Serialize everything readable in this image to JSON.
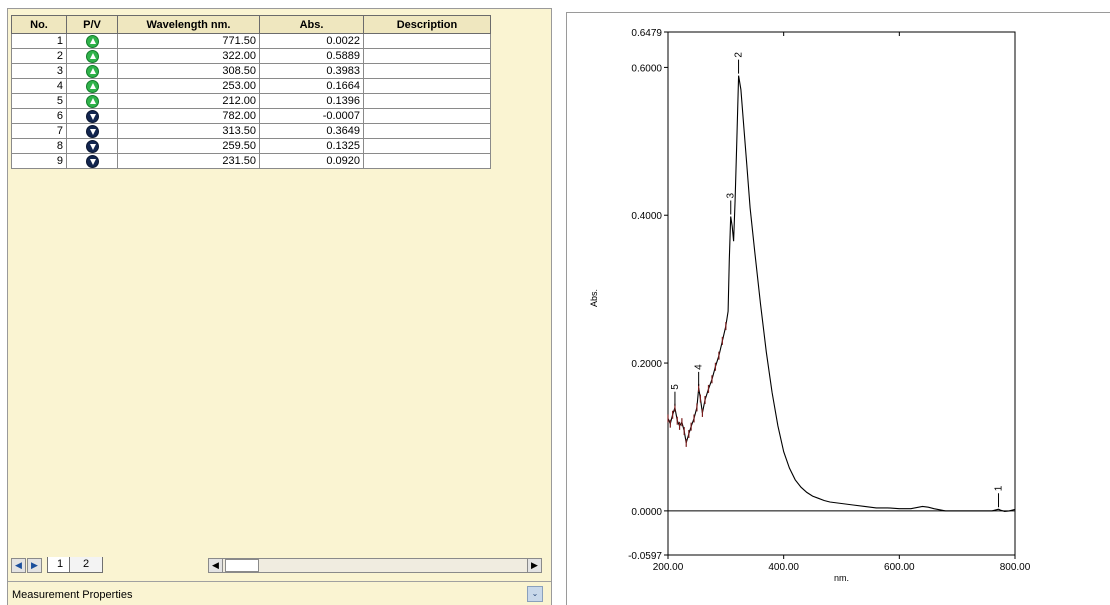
{
  "peak_table": {
    "headers": [
      "No.",
      "P/V",
      "Wavelength nm.",
      "Abs.",
      "Description"
    ],
    "rows": [
      {
        "no": "1",
        "type": "peak",
        "icon": "peak-arrow-up-icon",
        "wavelength": "771.50",
        "abs": "0.0022",
        "description": ""
      },
      {
        "no": "2",
        "type": "peak",
        "icon": "peak-arrow-up-icon",
        "wavelength": "322.00",
        "abs": "0.5889",
        "description": ""
      },
      {
        "no": "3",
        "type": "peak",
        "icon": "peak-arrow-up-icon",
        "wavelength": "308.50",
        "abs": "0.3983",
        "description": ""
      },
      {
        "no": "4",
        "type": "peak",
        "icon": "peak-arrow-up-icon",
        "wavelength": "253.00",
        "abs": "0.1664",
        "description": ""
      },
      {
        "no": "5",
        "type": "peak",
        "icon": "peak-arrow-up-icon",
        "wavelength": "212.00",
        "abs": "0.1396",
        "description": ""
      },
      {
        "no": "6",
        "type": "valley",
        "icon": "valley-arrow-down-icon",
        "wavelength": "782.00",
        "abs": "-0.0007",
        "description": ""
      },
      {
        "no": "7",
        "type": "valley",
        "icon": "valley-arrow-down-icon",
        "wavelength": "313.50",
        "abs": "0.3649",
        "description": ""
      },
      {
        "no": "8",
        "type": "valley",
        "icon": "valley-arrow-down-icon",
        "wavelength": "259.50",
        "abs": "0.1325",
        "description": ""
      },
      {
        "no": "9",
        "type": "valley",
        "icon": "valley-arrow-down-icon",
        "wavelength": "231.50",
        "abs": "0.0920",
        "description": ""
      }
    ]
  },
  "tabs": {
    "nav_prev": "◀",
    "nav_next": "▶",
    "items": [
      "1",
      "2"
    ],
    "scroll_left": "◀",
    "scroll_right": "▶"
  },
  "properties_bar": {
    "label": "Measurement Properties",
    "collapse_icon": "double-chevron-down-icon"
  },
  "colors": {
    "pane_background": "#faf4d2",
    "peak_icon": "#2fb24a",
    "valley_icon": "#12254f",
    "trace": "#000000",
    "noise_marks": "#7a1d1d"
  },
  "chart_data": {
    "type": "line",
    "xlabel": "nm.",
    "ylabel": "Abs.",
    "xlim": [
      200,
      800
    ],
    "ylim": [
      -0.0597,
      0.6479
    ],
    "x_ticks": [
      "200.00",
      "400.00",
      "600.00",
      "800.00"
    ],
    "x_tick_values": [
      200,
      400,
      600,
      800
    ],
    "y_ticks": [
      "-0.0597",
      "0.0000",
      "0.2000",
      "0.4000",
      "0.6000",
      "0.6479"
    ],
    "y_tick_values": [
      -0.0597,
      0.0,
      0.2,
      0.4,
      0.6,
      0.6479
    ],
    "baseline": 0.0,
    "series": [
      {
        "x": [
          200,
          204,
          208,
          212,
          216,
          220,
          224,
          228,
          231.5,
          236,
          240,
          245,
          250,
          253,
          256,
          259.5,
          264,
          270,
          276,
          282,
          288,
          294,
          300,
          304,
          306,
          308.5,
          311,
          313.5,
          316,
          319,
          322,
          326,
          330,
          336,
          342,
          350,
          360,
          370,
          380,
          390,
          400,
          410,
          420,
          430,
          440,
          450,
          460,
          470,
          480,
          500,
          520,
          540,
          560,
          580,
          600,
          620,
          640,
          650,
          660,
          680,
          700,
          720,
          740,
          760,
          771.5,
          775,
          782,
          790,
          800
        ],
        "y": [
          0.125,
          0.118,
          0.13,
          0.1396,
          0.122,
          0.115,
          0.12,
          0.108,
          0.092,
          0.104,
          0.114,
          0.125,
          0.14,
          0.1664,
          0.152,
          0.1325,
          0.15,
          0.165,
          0.178,
          0.195,
          0.21,
          0.23,
          0.25,
          0.27,
          0.34,
          0.3983,
          0.385,
          0.3649,
          0.42,
          0.5,
          0.5889,
          0.57,
          0.53,
          0.47,
          0.41,
          0.35,
          0.28,
          0.215,
          0.16,
          0.115,
          0.08,
          0.058,
          0.042,
          0.032,
          0.025,
          0.02,
          0.017,
          0.014,
          0.012,
          0.01,
          0.008,
          0.006,
          0.004,
          0.004,
          0.003,
          0.003,
          0.006,
          0.005,
          0.003,
          0.0,
          0.0,
          0.0,
          0.0,
          0.0,
          0.0022,
          0.001,
          -0.0007,
          0.0,
          0.002
        ]
      }
    ],
    "peak_labels": [
      {
        "label": "1",
        "x": 771.5,
        "y": 0.0022
      },
      {
        "label": "2",
        "x": 322.0,
        "y": 0.5889
      },
      {
        "label": "3",
        "x": 308.5,
        "y": 0.3983
      },
      {
        "label": "4",
        "x": 253.0,
        "y": 0.1664
      },
      {
        "label": "5",
        "x": 212.0,
        "y": 0.1396
      }
    ]
  }
}
